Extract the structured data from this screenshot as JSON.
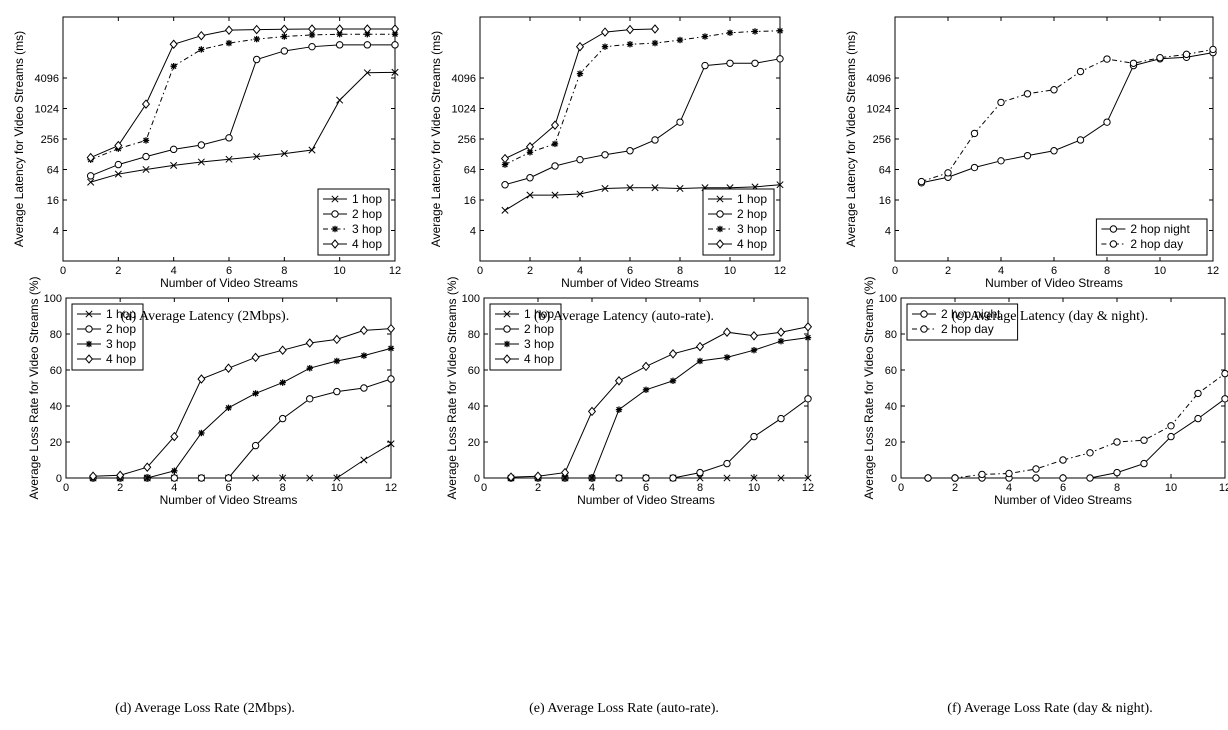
{
  "figure": {
    "captions": [
      "(a) Average Latency (2Mbps).",
      "(b) Average Latency (auto-rate).",
      "(c) Average Latency (day & night).",
      "(d) Average Loss Rate (2Mbps).",
      "(e) Average Loss Rate (auto-rate).",
      "(f) Average Loss Rate (day & night)."
    ]
  },
  "chart_data": [
    {
      "type": "line",
      "xlabel": "Number of Video Streams",
      "ylabel": "Average Latency for Video Streams (ms)",
      "yscale": "log2",
      "xlim": [
        0,
        12
      ],
      "ylim": [
        1,
        65536
      ],
      "xticks": [
        0,
        2,
        4,
        6,
        8,
        10,
        12
      ],
      "yticks": [
        4,
        16,
        64,
        256,
        1024,
        4096
      ],
      "grid": false,
      "legend_position": "bottom-right",
      "series": [
        {
          "name": "1 hop",
          "marker": "x",
          "dash": "solid",
          "x": [
            1,
            2,
            3,
            4,
            5,
            6,
            7,
            8,
            9,
            10,
            11,
            12
          ],
          "y": [
            36,
            52,
            64,
            77,
            90,
            102,
            115,
            132,
            155,
            1500,
            5200,
            5300
          ]
        },
        {
          "name": "2 hop",
          "marker": "circle",
          "dash": "solid",
          "x": [
            1,
            2,
            3,
            4,
            5,
            6,
            7,
            8,
            9,
            10,
            11,
            12
          ],
          "y": [
            48,
            80,
            115,
            160,
            195,
            270,
            9500,
            14000,
            17000,
            18500,
            18500,
            18500
          ]
        },
        {
          "name": "3 hop",
          "marker": "star",
          "dash": "dashdot",
          "x": [
            1,
            2,
            3,
            4,
            5,
            6,
            7,
            8,
            9,
            10,
            11,
            12
          ],
          "y": [
            100,
            165,
            240,
            7000,
            15000,
            20000,
            24000,
            27000,
            29000,
            30000,
            30000,
            30000
          ]
        },
        {
          "name": "4 hop",
          "marker": "diamond",
          "dash": "solid",
          "x": [
            1,
            2,
            3,
            4,
            5,
            6,
            7,
            8,
            9,
            10,
            11,
            12
          ],
          "y": [
            110,
            190,
            1250,
            19000,
            28000,
            36000,
            37000,
            37500,
            38000,
            38000,
            38000,
            38000
          ]
        }
      ]
    },
    {
      "type": "line",
      "xlabel": "Number of Video Streams",
      "ylabel": "Average Latency for Video Streams (ms)",
      "yscale": "log2",
      "xlim": [
        0,
        12
      ],
      "ylim": [
        1,
        65536
      ],
      "xticks": [
        0,
        2,
        4,
        6,
        8,
        10,
        12
      ],
      "yticks": [
        4,
        16,
        64,
        256,
        1024,
        4096
      ],
      "grid": false,
      "legend_position": "bottom-right",
      "series": [
        {
          "name": "1 hop",
          "marker": "x",
          "dash": "solid",
          "x": [
            1,
            2,
            3,
            4,
            5,
            6,
            7,
            8,
            9,
            10,
            11,
            12
          ],
          "y": [
            10,
            20,
            20,
            21,
            27,
            28,
            28,
            27,
            28,
            28,
            29,
            32
          ]
        },
        {
          "name": "2 hop",
          "marker": "circle",
          "dash": "solid",
          "x": [
            1,
            2,
            3,
            4,
            5,
            6,
            7,
            8,
            9,
            10,
            11,
            12
          ],
          "y": [
            32,
            44,
            75,
            100,
            125,
            150,
            245,
            550,
            7200,
            8000,
            8000,
            9800
          ]
        },
        {
          "name": "3 hop",
          "marker": "star",
          "dash": "dashdot",
          "x": [
            1,
            2,
            3,
            4,
            5,
            6,
            7,
            8,
            9,
            10,
            11,
            12
          ],
          "y": [
            80,
            140,
            205,
            5000,
            17000,
            19000,
            20000,
            23000,
            27000,
            32000,
            34000,
            35000
          ]
        },
        {
          "name": "4 hop",
          "marker": "diamond",
          "dash": "solid",
          "x": [
            1,
            2,
            3,
            4,
            5,
            6,
            7
          ],
          "y": [
            105,
            180,
            480,
            17000,
            33000,
            37000,
            38000
          ]
        }
      ]
    },
    {
      "type": "line",
      "xlabel": "Number of Video Streams",
      "ylabel": "Average Latency for Video Streams (ms)",
      "yscale": "log2",
      "xlim": [
        0,
        12
      ],
      "ylim": [
        1,
        65536
      ],
      "xticks": [
        0,
        2,
        4,
        6,
        8,
        10,
        12
      ],
      "yticks": [
        4,
        16,
        64,
        256,
        1024,
        4096
      ],
      "grid": false,
      "legend_position": "bottom-right",
      "series": [
        {
          "name": "2 hop night",
          "marker": "circle",
          "dash": "solid",
          "x": [
            1,
            2,
            3,
            4,
            5,
            6,
            7,
            8,
            9,
            10,
            11,
            12
          ],
          "y": [
            35,
            45,
            70,
            95,
            120,
            150,
            245,
            550,
            7200,
            9800,
            10500,
            13000
          ]
        },
        {
          "name": "2 hop day",
          "marker": "circle",
          "dash": "dashdot",
          "x": [
            1,
            2,
            3,
            4,
            5,
            6,
            7,
            8,
            9,
            10,
            11,
            12
          ],
          "y": [
            37,
            55,
            330,
            1350,
            2000,
            2400,
            5500,
            9700,
            8000,
            10300,
            12000,
            15000
          ]
        }
      ]
    },
    {
      "type": "line",
      "xlabel": "Number of Video Streams",
      "ylabel": "Average Loss Rate for Video Streams (%)",
      "yscale": "linear",
      "xlim": [
        0,
        12
      ],
      "ylim": [
        0,
        100
      ],
      "xticks": [
        0,
        2,
        4,
        6,
        8,
        10,
        12
      ],
      "yticks": [
        0,
        20,
        40,
        60,
        80,
        100
      ],
      "grid": false,
      "legend_position": "top-left",
      "series": [
        {
          "name": "1 hop",
          "marker": "x",
          "dash": "solid",
          "x": [
            1,
            2,
            3,
            4,
            5,
            6,
            7,
            8,
            9,
            10,
            11,
            12
          ],
          "y": [
            0,
            0,
            0,
            0,
            0,
            0,
            0,
            0,
            0,
            0,
            10,
            19
          ]
        },
        {
          "name": "2 hop",
          "marker": "circle",
          "dash": "solid",
          "x": [
            1,
            2,
            3,
            4,
            5,
            6,
            7,
            8,
            9,
            10,
            11,
            12
          ],
          "y": [
            0,
            0,
            0,
            0,
            0,
            0,
            18,
            33,
            44,
            48,
            50,
            55
          ]
        },
        {
          "name": "3 hop",
          "marker": "star",
          "dash": "solid",
          "x": [
            1,
            2,
            3,
            4,
            5,
            6,
            7,
            8,
            9,
            10,
            11,
            12
          ],
          "y": [
            0,
            0,
            0,
            4,
            25,
            39,
            47,
            53,
            61,
            65,
            68,
            72
          ]
        },
        {
          "name": "4 hop",
          "marker": "diamond",
          "dash": "solid",
          "x": [
            1,
            2,
            3,
            4,
            5,
            6,
            7,
            8,
            9,
            10,
            11,
            12
          ],
          "y": [
            1,
            1.5,
            6,
            23,
            55,
            61,
            67,
            71,
            75,
            77,
            82,
            83
          ]
        }
      ]
    },
    {
      "type": "line",
      "xlabel": "Number of Video Streams",
      "ylabel": "Average Loss Rate for Video Streams (%)",
      "yscale": "linear",
      "xlim": [
        0,
        12
      ],
      "ylim": [
        0,
        100
      ],
      "xticks": [
        0,
        2,
        4,
        6,
        8,
        10,
        12
      ],
      "yticks": [
        0,
        20,
        40,
        60,
        80,
        100
      ],
      "grid": false,
      "legend_position": "top-left",
      "series": [
        {
          "name": "1 hop",
          "marker": "x",
          "dash": "solid",
          "x": [
            1,
            2,
            3,
            4,
            5,
            6,
            7,
            8,
            9,
            10,
            11,
            12
          ],
          "y": [
            0,
            0,
            0,
            0,
            0,
            0,
            0,
            0,
            0,
            0,
            0,
            0
          ]
        },
        {
          "name": "2 hop",
          "marker": "circle",
          "dash": "solid",
          "x": [
            1,
            2,
            3,
            4,
            5,
            6,
            7,
            8,
            9,
            10,
            11,
            12
          ],
          "y": [
            0,
            0,
            0,
            0,
            0,
            0,
            0,
            3,
            8,
            23,
            33,
            44
          ]
        },
        {
          "name": "3 hop",
          "marker": "star",
          "dash": "solid",
          "x": [
            1,
            2,
            3,
            4,
            5,
            6,
            7,
            8,
            9,
            10,
            11,
            12
          ],
          "y": [
            0,
            0,
            0,
            0,
            38,
            49,
            54,
            65,
            67,
            71,
            76,
            78
          ]
        },
        {
          "name": "4 hop",
          "marker": "diamond",
          "dash": "solid",
          "x": [
            1,
            2,
            3,
            4,
            5,
            6,
            7,
            8,
            9,
            10,
            11,
            12
          ],
          "y": [
            0.5,
            1,
            3,
            37,
            54,
            62,
            69,
            73,
            81,
            79,
            81,
            84
          ]
        }
      ]
    },
    {
      "type": "line",
      "xlabel": "Number of Video Streams",
      "ylabel": "Average Loss Rate for Video Streams (%)",
      "yscale": "linear",
      "xlim": [
        0,
        12
      ],
      "ylim": [
        0,
        100
      ],
      "xticks": [
        0,
        2,
        4,
        6,
        8,
        10,
        12
      ],
      "yticks": [
        0,
        20,
        40,
        60,
        80,
        100
      ],
      "grid": false,
      "legend_position": "top-left",
      "series": [
        {
          "name": "2 hop night",
          "marker": "circle",
          "dash": "solid",
          "x": [
            1,
            2,
            3,
            4,
            5,
            6,
            7,
            8,
            9,
            10,
            11,
            12
          ],
          "y": [
            0,
            0,
            0,
            0,
            0,
            0,
            0,
            3,
            8,
            23,
            33,
            44
          ]
        },
        {
          "name": "2 hop day",
          "marker": "circle",
          "dash": "dashdot",
          "x": [
            1,
            2,
            3,
            4,
            5,
            6,
            7,
            8,
            9,
            10,
            11,
            12
          ],
          "y": [
            0,
            0,
            2,
            2.5,
            5,
            10,
            14,
            20,
            21,
            29,
            47,
            58
          ]
        }
      ]
    }
  ]
}
